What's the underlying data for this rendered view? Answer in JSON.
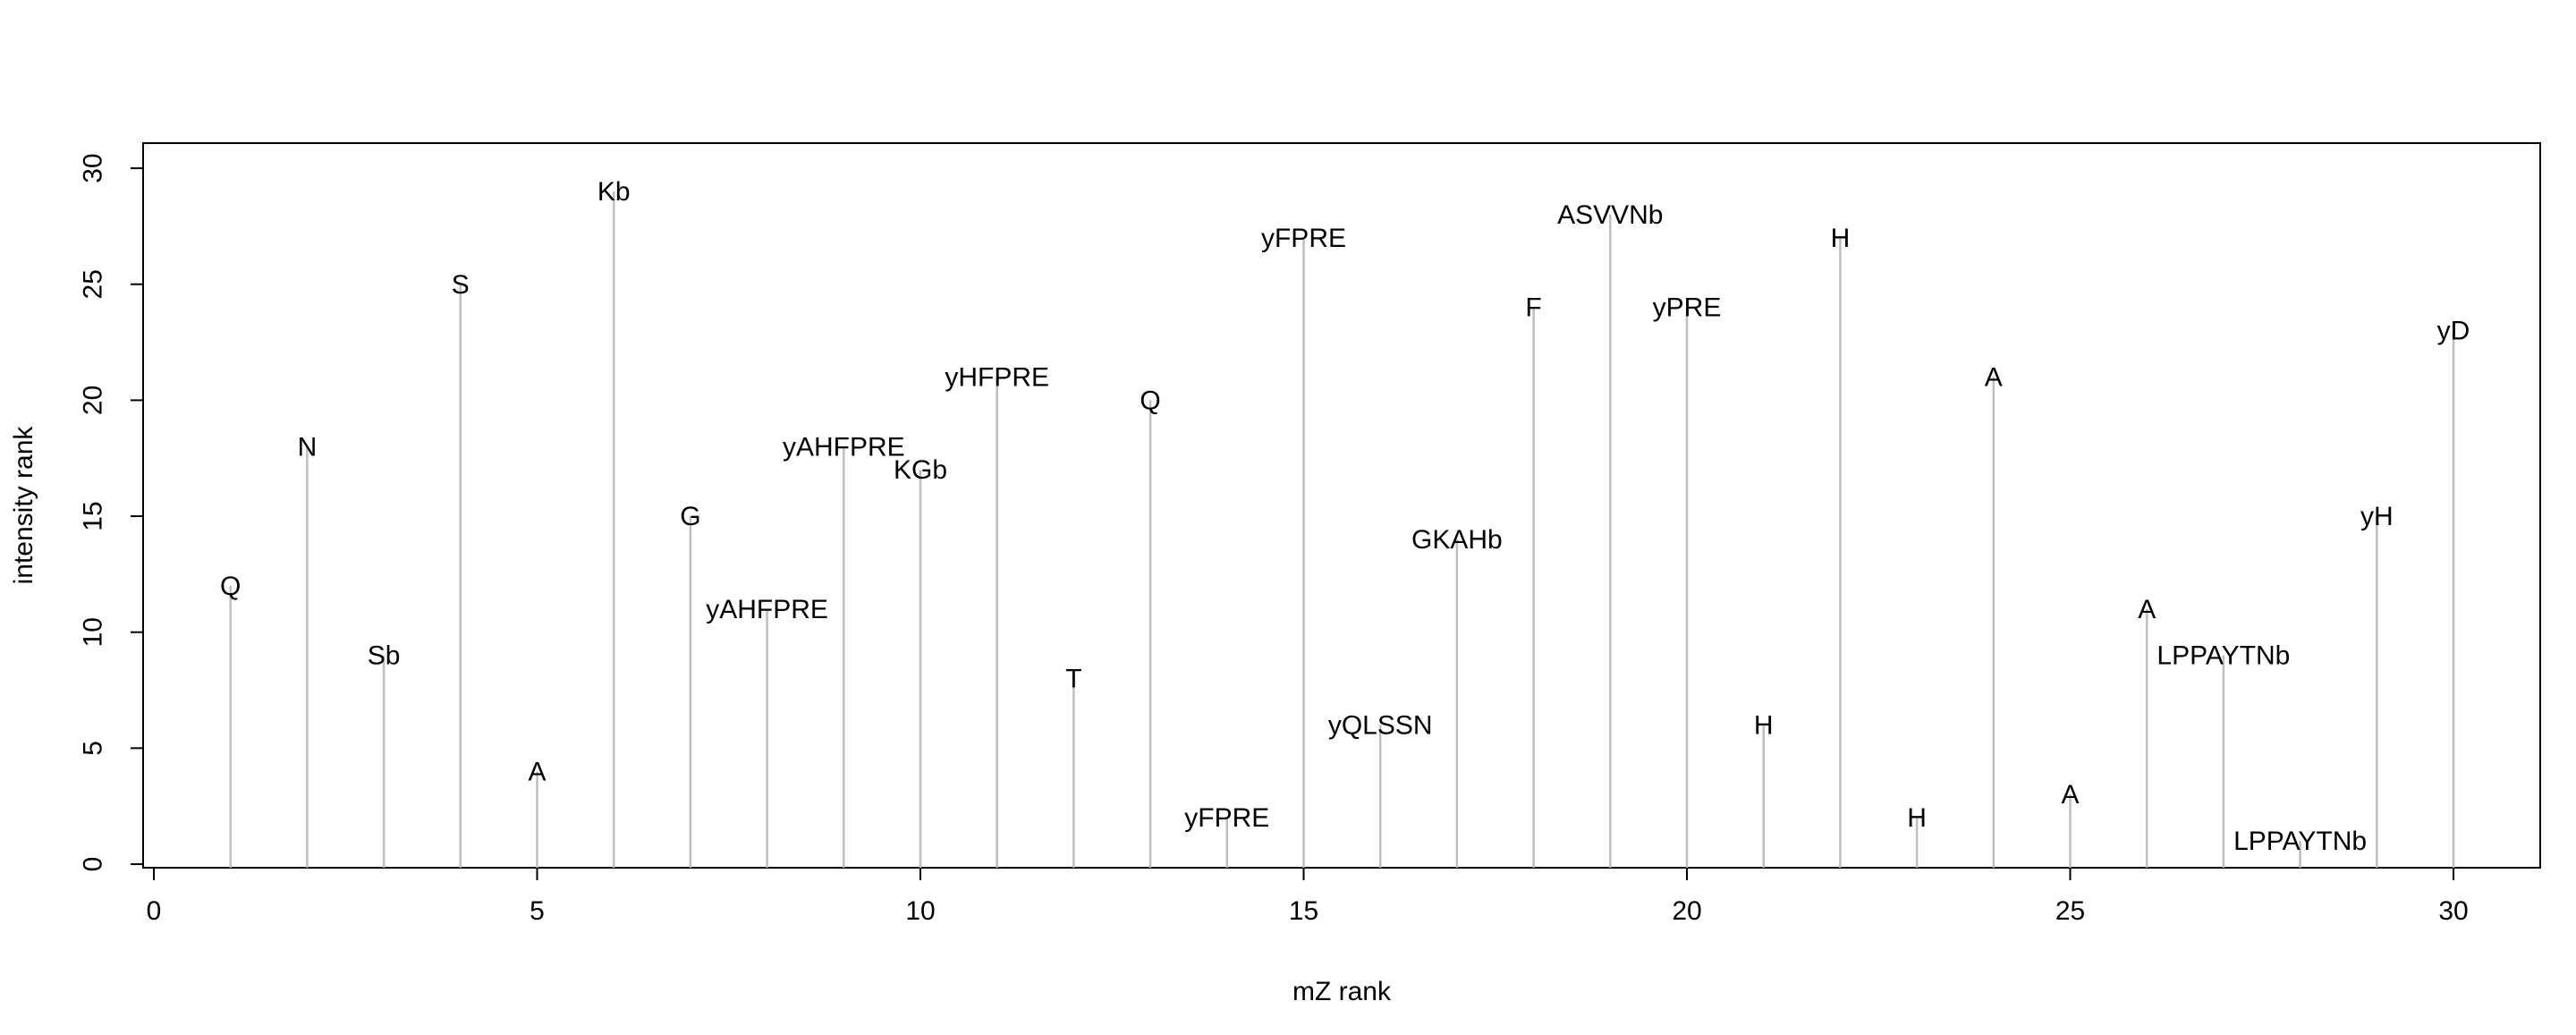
{
  "chart_data": {
    "type": "stem",
    "xlabel": "mZ rank",
    "ylabel": "intensity rank",
    "xlim": [
      0,
      30
    ],
    "ylim": [
      0,
      30
    ],
    "x_ticks": [
      0,
      5,
      10,
      15,
      20,
      25,
      30
    ],
    "y_ticks": [
      0,
      5,
      10,
      15,
      20,
      25,
      30
    ],
    "grid": false,
    "legend": "none",
    "stem_color": "#bebebe",
    "points": [
      {
        "x": 1,
        "y": 12,
        "label": "Q"
      },
      {
        "x": 2,
        "y": 18,
        "label": "N"
      },
      {
        "x": 3,
        "y": 9,
        "label": "Sb"
      },
      {
        "x": 4,
        "y": 25,
        "label": "S"
      },
      {
        "x": 5,
        "y": 4,
        "label": "A"
      },
      {
        "x": 6,
        "y": 29,
        "label": "Kb"
      },
      {
        "x": 7,
        "y": 15,
        "label": "G"
      },
      {
        "x": 8,
        "y": 11,
        "label": "yAHFPRE"
      },
      {
        "x": 9,
        "y": 18,
        "label": "yAHFPRE"
      },
      {
        "x": 10,
        "y": 17,
        "label": "KGb"
      },
      {
        "x": 11,
        "y": 21,
        "label": "yHFPRE"
      },
      {
        "x": 12,
        "y": 8,
        "label": "T"
      },
      {
        "x": 13,
        "y": 20,
        "label": "Q"
      },
      {
        "x": 14,
        "y": 2,
        "label": "yFPRE"
      },
      {
        "x": 15,
        "y": 27,
        "label": "yFPRE"
      },
      {
        "x": 16,
        "y": 6,
        "label": "yQLSSN"
      },
      {
        "x": 17,
        "y": 14,
        "label": "GKAHb"
      },
      {
        "x": 18,
        "y": 24,
        "label": "F"
      },
      {
        "x": 19,
        "y": 28,
        "label": "ASVVNb"
      },
      {
        "x": 20,
        "y": 24,
        "label": "yPRE"
      },
      {
        "x": 21,
        "y": 6,
        "label": "H"
      },
      {
        "x": 22,
        "y": 27,
        "label": "H"
      },
      {
        "x": 23,
        "y": 2,
        "label": "H"
      },
      {
        "x": 24,
        "y": 21,
        "label": "A"
      },
      {
        "x": 25,
        "y": 3,
        "label": "A"
      },
      {
        "x": 26,
        "y": 11,
        "label": "A"
      },
      {
        "x": 27,
        "y": 9,
        "label": "LPPAYTNb"
      },
      {
        "x": 28,
        "y": 1,
        "label": "LPPAYTNb"
      },
      {
        "x": 29,
        "y": 15,
        "label": "yH"
      },
      {
        "x": 30,
        "y": 23,
        "label": "yD"
      }
    ]
  }
}
